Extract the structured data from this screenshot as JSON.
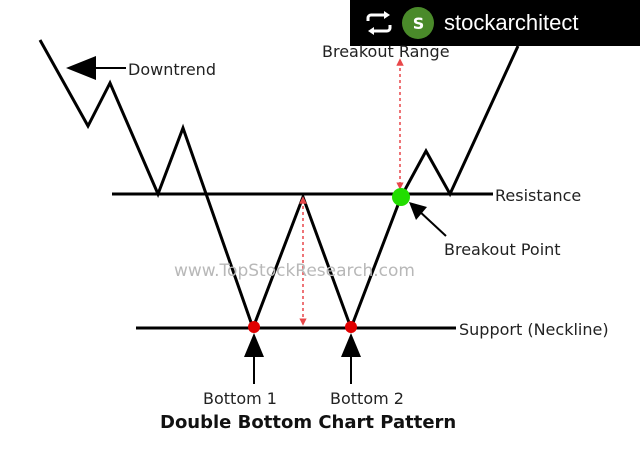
{
  "repost": {
    "icon": "repost-icon",
    "avatar_initials": "S",
    "username": "stockarchitect"
  },
  "diagram": {
    "labels": {
      "downtrend": "Downtrend",
      "breakout_range": "Breakout Range",
      "resistance": "Resistance",
      "breakout_point": "Breakout Point",
      "support": "Support (Neckline)",
      "bottom1": "Bottom 1",
      "bottom2": "Bottom 2"
    },
    "watermark": "www.TopStockResearch.com",
    "title": "Double Bottom Chart Pattern",
    "colors": {
      "line": "#000000",
      "bottom_marker": "#e00000",
      "breakout_marker": "#22dd00",
      "range_arrow": "#e8474a"
    }
  }
}
